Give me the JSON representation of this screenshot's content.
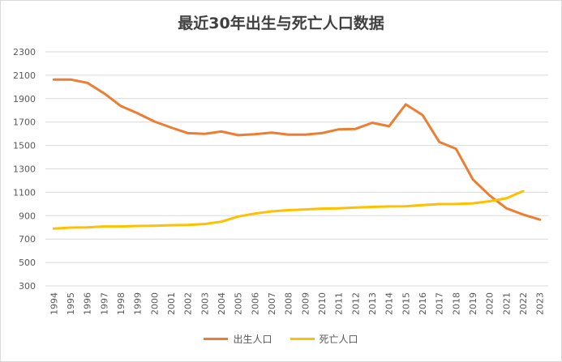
{
  "chart_data": {
    "type": "line",
    "title": "最近30年出生与死亡人口数据",
    "xlabel": "",
    "ylabel": "",
    "x": [
      "1994",
      "1995",
      "1996",
      "1997",
      "1998",
      "1999",
      "2000",
      "2001",
      "2002",
      "2003",
      "2004",
      "2005",
      "2006",
      "2007",
      "2008",
      "2009",
      "2010",
      "2011",
      "2012",
      "2013",
      "2014",
      "2015",
      "2016",
      "2017",
      "2018",
      "2019",
      "2020",
      "2021",
      "2022",
      "2023"
    ],
    "ylim": [
      300,
      2300
    ],
    "yticks": [
      300,
      500,
      700,
      900,
      1100,
      1300,
      1500,
      1700,
      1900,
      2100,
      2300
    ],
    "grid": true,
    "legend_position": "bottom",
    "series": [
      {
        "name": "出生人口",
        "color": "#ed7d31",
        "values": [
          2063,
          2063,
          2035,
          1946,
          1837,
          1775,
          1705,
          1653,
          1605,
          1599,
          1619,
          1588,
          1596,
          1609,
          1593,
          1593,
          1605,
          1638,
          1641,
          1694,
          1664,
          1851,
          1760,
          1530,
          1471,
          1211,
          1073,
          964,
          910,
          866
        ]
      },
      {
        "name": "死亡人口",
        "color": "#ffc000",
        "values": [
          790,
          798,
          800,
          808,
          808,
          812,
          814,
          818,
          821,
          829,
          849,
          893,
          918,
          937,
          947,
          953,
          960,
          962,
          970,
          975,
          979,
          980,
          990,
          999,
          1000,
          1005,
          1023,
          1048,
          1110,
          null
        ]
      }
    ]
  }
}
